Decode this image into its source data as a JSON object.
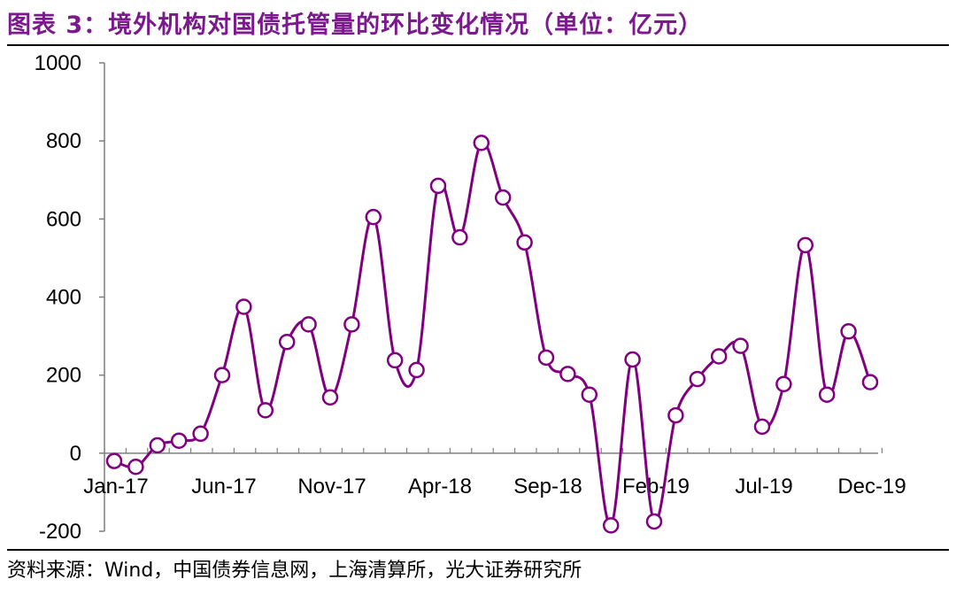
{
  "title": "图表 3：境外机构对国债托管量的环比变化情况（单位：亿元）",
  "source": "资料来源：Wind，中国债券信息网，上海清算所，光大证券研究所",
  "colors": {
    "title": "#7b1a8c",
    "series": "#800080",
    "axis": "#7f7f7f"
  },
  "chart_data": {
    "type": "line",
    "marker": "circle-hollow",
    "smooth": true,
    "ylim": [
      -200,
      1000
    ],
    "yticks": [
      -200,
      0,
      200,
      400,
      600,
      800,
      1000
    ],
    "xtick_labels": [
      "Jan-17",
      "Jun-17",
      "Nov-17",
      "Apr-18",
      "Sep-18",
      "Feb-19",
      "Jul-19",
      "Dec-19"
    ],
    "x": [
      "Jan-17",
      "Feb-17",
      "Mar-17",
      "Apr-17",
      "May-17",
      "Jun-17",
      "Jul-17",
      "Aug-17",
      "Sep-17",
      "Oct-17",
      "Nov-17",
      "Dec-17",
      "Jan-18",
      "Feb-18",
      "Mar-18",
      "Apr-18",
      "May-18",
      "Jun-18",
      "Jul-18",
      "Aug-18",
      "Sep-18",
      "Oct-18",
      "Nov-18",
      "Dec-18",
      "Jan-19",
      "Feb-19",
      "Mar-19",
      "Apr-19",
      "May-19",
      "Jun-19",
      "Jul-19",
      "Aug-19",
      "Sep-19",
      "Oct-19",
      "Nov-19",
      "Dec-19"
    ],
    "series": [
      {
        "values": [
          -20,
          -35,
          20,
          32,
          50,
          200,
          375,
          110,
          285,
          330,
          143,
          330,
          605,
          238,
          213,
          685,
          553,
          795,
          655,
          540,
          245,
          203,
          150,
          -185,
          240,
          -175,
          97,
          190,
          248,
          275,
          68,
          177,
          533,
          150,
          312,
          182
        ]
      }
    ]
  }
}
